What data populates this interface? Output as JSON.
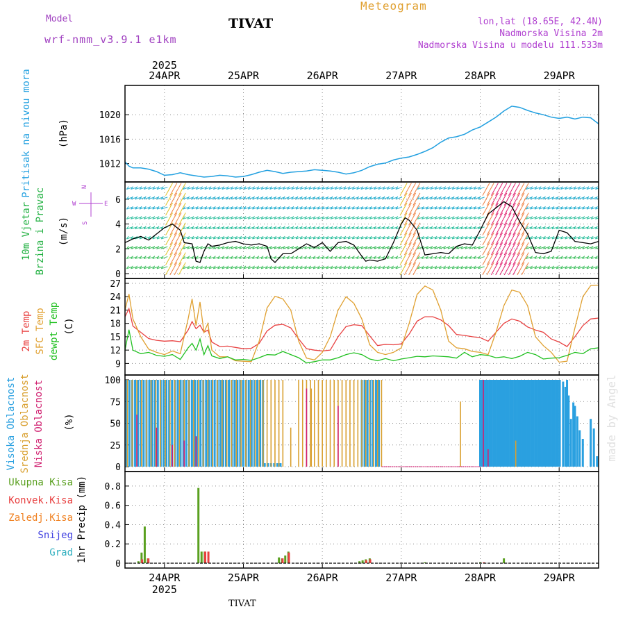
{
  "header": {
    "model_label": "Model",
    "model_name": "wrf-nmm_v3.9.1 e1km",
    "station": "TIVAT",
    "meteogram": "Meteogram",
    "lonlat": "lon,lat (18.65E, 42.4N)",
    "elevation": "Nadmorska Visina 2m",
    "model_elevation": "Nadmorska Visina u modelu 111.533m",
    "footer_station": "TIVAT",
    "watermark": "made by Angel"
  },
  "colors": {
    "pressure": "#22a0e0",
    "temp2m": "#e84040",
    "sfc": "#e0a030",
    "dew": "#20c020",
    "high_cloud": "#2aa0e0",
    "mid_cloud": "#d9a030",
    "low_cloud": "#d02070",
    "total_precip": "#5aa020",
    "conv_precip": "#e84040",
    "frozen": "#f08020",
    "snow": "#4040e0",
    "graupel": "#30b0c0",
    "model": "#a040c0",
    "lonlat": "#b040d0"
  },
  "chart_data": [
    {
      "type": "line",
      "title": "Pritisak na nivou mora",
      "ylabel": "(hPa)",
      "ylim": [
        1009.8,
        1024
      ],
      "yticks": [
        1012,
        1016,
        1020
      ],
      "x_dates": [
        "24APR",
        "25APR",
        "26APR",
        "27APR",
        "28APR",
        "29APR"
      ],
      "x_year": "2025",
      "x_range_days": [
        -0.5,
        5.5
      ],
      "series": [
        {
          "name": "pressure",
          "x": [
            -0.5,
            -0.45,
            -0.4,
            -0.3,
            -0.2,
            -0.1,
            0.0,
            0.1,
            0.2,
            0.3,
            0.4,
            0.5,
            0.6,
            0.7,
            0.8,
            0.9,
            1.0,
            1.1,
            1.2,
            1.3,
            1.4,
            1.5,
            1.6,
            1.7,
            1.8,
            1.9,
            2.0,
            2.1,
            2.2,
            2.3,
            2.4,
            2.5,
            2.6,
            2.7,
            2.8,
            2.9,
            3.0,
            3.1,
            3.2,
            3.3,
            3.4,
            3.5,
            3.6,
            3.7,
            3.8,
            3.9,
            4.0,
            4.1,
            4.2,
            4.3,
            4.4,
            4.5,
            4.6,
            4.7,
            4.8,
            4.9,
            5.0,
            5.1,
            5.2,
            5.3,
            5.4,
            5.5
          ],
          "values": [
            1012.3,
            1011.6,
            1011.3,
            1011.3,
            1011.1,
            1010.7,
            1010.1,
            1010.2,
            1010.5,
            1010.2,
            1010.0,
            1009.8,
            1009.9,
            1010.1,
            1010.0,
            1009.8,
            1009.9,
            1010.2,
            1010.6,
            1010.9,
            1010.7,
            1010.4,
            1010.6,
            1010.7,
            1010.8,
            1011.0,
            1010.9,
            1010.8,
            1010.6,
            1010.3,
            1010.5,
            1010.9,
            1011.5,
            1011.9,
            1012.1,
            1012.6,
            1012.9,
            1013.1,
            1013.5,
            1014.0,
            1014.6,
            1015.5,
            1016.2,
            1016.4,
            1016.8,
            1017.5,
            1018.0,
            1018.8,
            1019.6,
            1020.6,
            1021.4,
            1021.2,
            1020.7,
            1020.3,
            1020.0,
            1019.6,
            1019.4,
            1019.6,
            1019.3,
            1019.6,
            1019.5,
            1018.5
          ]
        }
      ]
    },
    {
      "type": "line",
      "title": "10m Vjetar Brzina i Pravac",
      "ylabel": "(m/s)",
      "ylim": [
        0,
        7
      ],
      "yticks": [
        0,
        2,
        4,
        6
      ],
      "compass": {
        "n": "N",
        "s": "S",
        "w": "W",
        "e": "E"
      },
      "x_range_days": [
        -0.5,
        5.5
      ],
      "series": [
        {
          "name": "wind speed",
          "x": [
            -0.5,
            -0.4,
            -0.3,
            -0.2,
            -0.1,
            0.0,
            0.1,
            0.2,
            0.25,
            0.35,
            0.4,
            0.45,
            0.5,
            0.55,
            0.6,
            0.7,
            0.8,
            0.9,
            1.0,
            1.1,
            1.2,
            1.3,
            1.35,
            1.4,
            1.5,
            1.6,
            1.7,
            1.8,
            1.9,
            2.0,
            2.1,
            2.2,
            2.3,
            2.4,
            2.5,
            2.55,
            2.6,
            2.7,
            2.8,
            2.9,
            3.0,
            3.05,
            3.1,
            3.2,
            3.3,
            3.4,
            3.5,
            3.6,
            3.7,
            3.8,
            3.9,
            4.0,
            4.1,
            4.2,
            4.3,
            4.4,
            4.45,
            4.5,
            4.6,
            4.7,
            4.8,
            4.9,
            5.0,
            5.1,
            5.2,
            5.3,
            5.4,
            5.5
          ],
          "values": [
            2.5,
            2.8,
            3.0,
            2.7,
            3.2,
            3.7,
            4.0,
            3.5,
            2.5,
            2.4,
            1.0,
            0.9,
            1.8,
            2.4,
            2.2,
            2.3,
            2.5,
            2.6,
            2.4,
            2.3,
            2.4,
            2.2,
            1.2,
            0.9,
            1.6,
            1.6,
            2.0,
            2.4,
            2.1,
            2.5,
            1.8,
            2.5,
            2.6,
            2.3,
            1.4,
            1.0,
            1.1,
            1.0,
            1.2,
            2.5,
            4.0,
            4.5,
            4.3,
            3.5,
            1.5,
            1.6,
            1.7,
            1.6,
            2.2,
            2.4,
            2.3,
            3.5,
            4.8,
            5.3,
            5.8,
            5.4,
            4.8,
            4.2,
            3.2,
            1.7,
            1.6,
            1.8,
            3.5,
            3.3,
            2.6,
            2.5,
            2.4,
            2.6
          ]
        }
      ]
    },
    {
      "type": "line",
      "title": "2m Temp / SFC Temp / dewpt Temp",
      "ylabel": "(C)",
      "ylim": [
        7.5,
        27
      ],
      "yticks": [
        9,
        12,
        15,
        18,
        21,
        24,
        27
      ],
      "x_range_days": [
        -0.5,
        5.5
      ],
      "series": [
        {
          "name": "2m Temp",
          "x": [
            -0.5,
            -0.45,
            -0.4,
            -0.3,
            -0.2,
            -0.1,
            0.0,
            0.1,
            0.2,
            0.3,
            0.35,
            0.4,
            0.45,
            0.5,
            0.55,
            0.6,
            0.7,
            0.8,
            0.9,
            1.0,
            1.1,
            1.2,
            1.3,
            1.4,
            1.5,
            1.6,
            1.7,
            1.8,
            1.9,
            2.0,
            2.1,
            2.2,
            2.3,
            2.4,
            2.5,
            2.6,
            2.7,
            2.8,
            2.9,
            3.0,
            3.1,
            3.2,
            3.3,
            3.4,
            3.5,
            3.6,
            3.7,
            3.8,
            3.9,
            4.0,
            4.1,
            4.2,
            4.3,
            4.4,
            4.5,
            4.6,
            4.7,
            4.8,
            4.9,
            5.0,
            5.1,
            5.2,
            5.3,
            5.4,
            5.5
          ],
          "values": [
            19.5,
            21.3,
            17.4,
            16.0,
            14.6,
            14.2,
            14.0,
            14.1,
            13.9,
            16.5,
            18.4,
            16.8,
            17.6,
            16.0,
            16.5,
            13.8,
            12.8,
            12.9,
            12.6,
            12.3,
            12.4,
            13.5,
            16.3,
            17.6,
            17.8,
            17.0,
            14.5,
            12.3,
            12.0,
            11.8,
            12.0,
            15.0,
            17.3,
            17.7,
            17.5,
            15.2,
            13.0,
            13.3,
            13.2,
            13.4,
            15.6,
            18.5,
            19.5,
            19.5,
            18.8,
            17.5,
            15.5,
            15.3,
            15.0,
            14.8,
            14.0,
            16.0,
            18.0,
            19.0,
            18.5,
            17.2,
            16.5,
            16.0,
            14.5,
            13.8,
            12.8,
            15.0,
            17.5,
            19.0,
            19.2
          ]
        },
        {
          "name": "SFC Temp",
          "x": [
            -0.5,
            -0.45,
            -0.4,
            -0.3,
            -0.2,
            -0.1,
            0.0,
            0.1,
            0.2,
            0.3,
            0.35,
            0.4,
            0.45,
            0.5,
            0.55,
            0.6,
            0.7,
            0.8,
            0.9,
            1.0,
            1.1,
            1.2,
            1.3,
            1.4,
            1.5,
            1.6,
            1.7,
            1.8,
            1.9,
            2.0,
            2.1,
            2.2,
            2.3,
            2.4,
            2.5,
            2.6,
            2.7,
            2.8,
            2.9,
            3.0,
            3.1,
            3.2,
            3.3,
            3.4,
            3.5,
            3.6,
            3.7,
            3.8,
            3.9,
            4.0,
            4.1,
            4.2,
            4.3,
            4.4,
            4.5,
            4.6,
            4.7,
            4.8,
            4.9,
            5.0,
            5.1,
            5.2,
            5.3,
            5.4,
            5.5
          ],
          "values": [
            21.0,
            24.6,
            19.0,
            15.0,
            12.2,
            11.5,
            11.0,
            11.8,
            11.2,
            19.0,
            23.5,
            17.5,
            22.8,
            16.0,
            18.0,
            12.0,
            10.5,
            10.5,
            9.6,
            9.5,
            9.4,
            14.0,
            21.5,
            24.1,
            23.5,
            21.0,
            14.0,
            10.2,
            9.8,
            11.5,
            15.0,
            21.0,
            24.0,
            22.5,
            19.0,
            13.2,
            11.5,
            11.0,
            11.5,
            12.5,
            18.0,
            24.5,
            26.4,
            25.5,
            21.0,
            14.0,
            12.5,
            12.3,
            11.7,
            11.5,
            11.0,
            16.0,
            22.0,
            25.5,
            25.0,
            22.0,
            15.0,
            13.0,
            11.5,
            9.3,
            9.5,
            17.0,
            24.0,
            26.5,
            26.6
          ]
        },
        {
          "name": "dewpt Temp",
          "x": [
            -0.5,
            -0.45,
            -0.4,
            -0.3,
            -0.2,
            -0.1,
            0.0,
            0.1,
            0.2,
            0.3,
            0.35,
            0.4,
            0.45,
            0.5,
            0.55,
            0.6,
            0.7,
            0.8,
            0.9,
            1.0,
            1.1,
            1.2,
            1.3,
            1.4,
            1.5,
            1.6,
            1.7,
            1.8,
            1.9,
            2.0,
            2.1,
            2.2,
            2.3,
            2.4,
            2.5,
            2.6,
            2.7,
            2.8,
            2.9,
            3.0,
            3.1,
            3.2,
            3.3,
            3.4,
            3.5,
            3.6,
            3.7,
            3.8,
            3.9,
            4.0,
            4.1,
            4.2,
            4.3,
            4.4,
            4.5,
            4.6,
            4.7,
            4.8,
            4.9,
            5.0,
            5.1,
            5.2,
            5.3,
            5.4,
            5.5
          ],
          "values": [
            12.0,
            16.6,
            12.0,
            11.2,
            11.5,
            10.8,
            10.6,
            11.0,
            9.9,
            12.5,
            13.5,
            12.0,
            14.5,
            11.0,
            13.0,
            10.7,
            10.1,
            10.5,
            9.8,
            9.9,
            9.7,
            10.3,
            11.0,
            10.9,
            11.7,
            11.0,
            10.3,
            9.1,
            9.4,
            9.8,
            9.8,
            10.3,
            11.0,
            11.4,
            11.0,
            10.0,
            9.6,
            10.1,
            9.6,
            10.0,
            10.3,
            10.6,
            10.5,
            10.7,
            10.6,
            10.5,
            10.2,
            11.5,
            10.5,
            11.0,
            10.8,
            10.3,
            10.5,
            10.1,
            10.6,
            11.5,
            11.0,
            10.0,
            10.2,
            10.3,
            10.8,
            11.5,
            11.2,
            12.3,
            12.5
          ]
        }
      ]
    },
    {
      "type": "bar",
      "title": "Visoka Oblacnost / Srednja Oblacnost / Niska Oblacnost",
      "ylabel": "(%)",
      "ylim": [
        0,
        100
      ],
      "yticks": [
        0,
        25,
        50,
        75,
        100
      ],
      "x_range_days": [
        -0.5,
        5.5
      ],
      "series": [
        {
          "name": "Visoka Oblacnost",
          "segments": [
            {
              "from": -0.48,
              "to": 1.25,
              "step": 0.036,
              "value": 100
            },
            {
              "from": 1.27,
              "to": 1.5,
              "step": 0.04,
              "value": 4
            },
            {
              "from": 2.5,
              "to": 2.75,
              "step": 0.036,
              "value": 100
            },
            {
              "from": 4.0,
              "to": 5.02,
              "step": 0.024,
              "value": 100
            }
          ],
          "points": [
            [
              5.05,
              98
            ],
            [
              5.08,
              92
            ],
            [
              5.1,
              100
            ],
            [
              5.12,
              82
            ],
            [
              5.15,
              55
            ],
            [
              5.18,
              74
            ],
            [
              5.2,
              70
            ],
            [
              5.23,
              58
            ],
            [
              5.26,
              42
            ],
            [
              5.3,
              32
            ],
            [
              5.4,
              55
            ],
            [
              5.44,
              44
            ],
            [
              5.48,
              12
            ]
          ]
        },
        {
          "name": "Srednja Oblacnost",
          "segments": [
            {
              "from": -0.47,
              "to": 1.1,
              "step": 0.06,
              "value": 100
            },
            {
              "from": 1.15,
              "to": 1.5,
              "step": 0.05,
              "value": 100
            },
            {
              "from": 1.7,
              "to": 2.75,
              "step": 0.05,
              "value": 100
            }
          ],
          "points": [
            [
              1.6,
              45
            ],
            [
              1.86,
              90
            ],
            [
              3.75,
              75
            ],
            [
              4.45,
              30
            ]
          ]
        },
        {
          "name": "Niska Oblacnost",
          "points": [
            [
              -0.35,
              60
            ],
            [
              -0.1,
              45
            ],
            [
              0.1,
              25
            ],
            [
              0.25,
              30
            ],
            [
              0.4,
              35
            ],
            [
              1.8,
              90
            ],
            [
              2.2,
              70
            ],
            [
              4.04,
              100
            ],
            [
              4.1,
              20
            ]
          ]
        }
      ]
    },
    {
      "type": "bar",
      "title": "1hr Precip",
      "ylabel": "(mm)",
      "ylim": [
        0,
        0.9
      ],
      "yticks": [
        0,
        0.2,
        0.4,
        0.6,
        0.8
      ],
      "x_range_days": [
        -0.5,
        5.5
      ],
      "legend": [
        "Ukupna Kisa",
        "Konvek.Kisa",
        "Zaledj.Kisa",
        "Snijeg",
        "Grad"
      ],
      "series": [
        {
          "name": "Ukupna Kisa",
          "x": [
            -0.33,
            -0.29,
            -0.25,
            -0.21,
            0.43,
            0.47,
            0.51,
            1.45,
            1.49,
            1.53,
            1.57,
            2.47,
            2.51,
            2.55,
            2.6,
            3.3,
            4.0,
            4.3
          ],
          "values": [
            0.02,
            0.11,
            0.38,
            0.05,
            0.78,
            0.12,
            0.12,
            0.06,
            0.05,
            0.08,
            0.12,
            0.02,
            0.03,
            0.04,
            0.05,
            0.01,
            0.01,
            0.05
          ]
        },
        {
          "name": "Konvek.Kisa",
          "x": [
            -0.31,
            -0.23,
            0.49,
            0.53,
            1.47,
            1.55,
            2.53,
            2.58,
            4.02
          ],
          "values": [
            0.04,
            0.05,
            0.12,
            0.12,
            0.05,
            0.11,
            0.03,
            0.04,
            0.01
          ]
        }
      ]
    }
  ]
}
